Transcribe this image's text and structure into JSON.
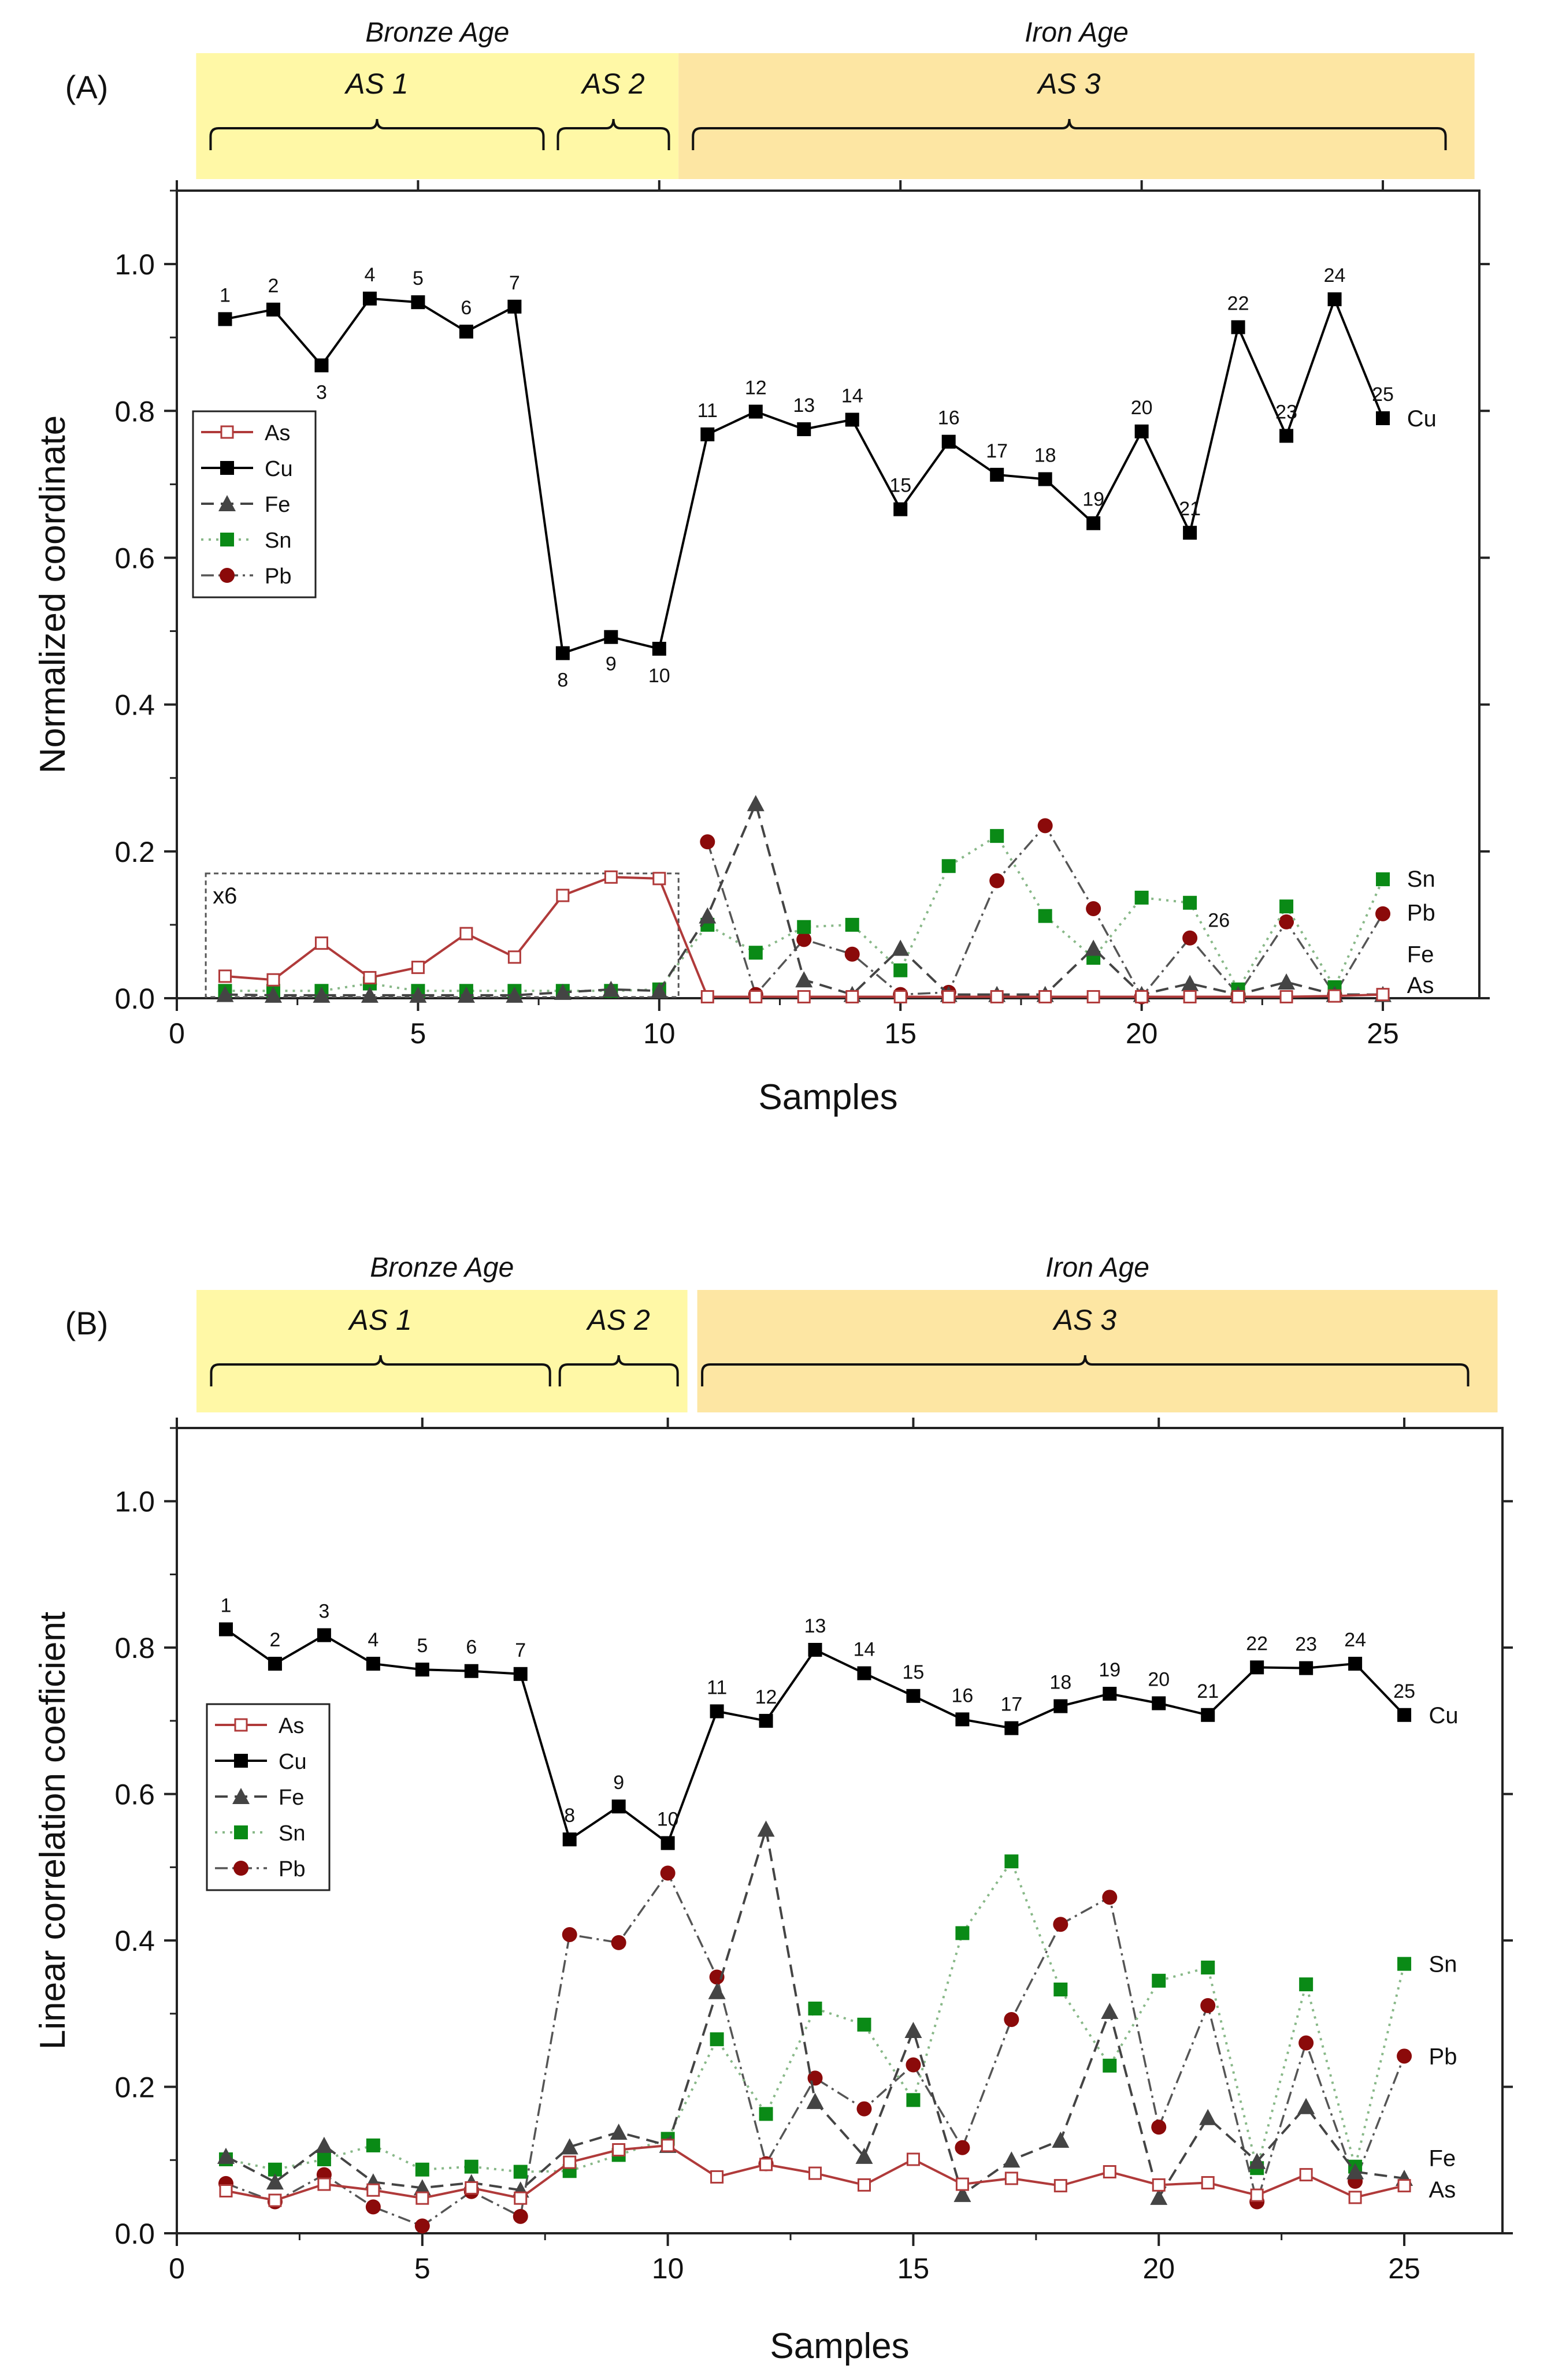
{
  "figure": {
    "colors": {
      "bronze_band": "#fff8a6",
      "iron_band": "#fde6a3",
      "As": "#b03a3a",
      "Cu": "#000000",
      "Fe": "#444444",
      "Sn": "#0a8a16",
      "Pb": "#8b0a0a"
    },
    "series_icons": {
      "As": "open-square-icon",
      "Cu": "filled-square-icon",
      "Fe": "triangle-icon",
      "Sn": "green-square-icon",
      "Pb": "circle-icon"
    }
  },
  "chart_data": [
    {
      "type": "line",
      "panel_label": "(A)",
      "xlabel": "Samples",
      "ylabel": "Normalized coordinate",
      "xlim": [
        0,
        27
      ],
      "ylim": [
        0,
        1.1
      ],
      "x_ticks": [
        0,
        5,
        10,
        15,
        20,
        25
      ],
      "y_ticks": [
        0.0,
        0.2,
        0.4,
        0.6,
        0.8,
        1.0
      ],
      "x_tick_labels": [
        "0",
        "5",
        "10",
        "15",
        "20",
        "25"
      ],
      "y_tick_labels": [
        "0.0",
        "0.2",
        "0.4",
        "0.6",
        "0.8",
        "1.0"
      ],
      "age_bands": [
        {
          "label": "Bronze Age",
          "x_range": [
            0.4,
            10.4
          ]
        },
        {
          "label": "Iron Age",
          "x_range": [
            10.4,
            26.9
          ]
        }
      ],
      "groups": [
        {
          "label": "AS 1",
          "x_range": [
            0.7,
            7.6
          ]
        },
        {
          "label": "AS 2",
          "x_range": [
            7.9,
            10.2
          ]
        },
        {
          "label": "AS 3",
          "x_range": [
            10.7,
            26.3
          ]
        }
      ],
      "legend": [
        "As",
        "Cu",
        "Fe",
        "Sn",
        "Pb"
      ],
      "legend_position": "upper-left",
      "inset_note": "x6",
      "inset_x_range": [
        0.6,
        10.4
      ],
      "inset_y_range": [
        0,
        0.17
      ],
      "series": [
        {
          "name": "Cu",
          "x": [
            1,
            2,
            3,
            4,
            5,
            6,
            7,
            8,
            9,
            10,
            11,
            12,
            13,
            14,
            15,
            16,
            17,
            18,
            19,
            20,
            21,
            22,
            23,
            24,
            25
          ],
          "values": [
            0.925,
            0.938,
            0.862,
            0.953,
            0.948,
            0.908,
            0.942,
            0.47,
            0.492,
            0.476,
            0.768,
            0.799,
            0.775,
            0.788,
            0.666,
            0.758,
            0.713,
            0.707,
            0.647,
            0.772,
            0.634,
            0.914,
            0.766,
            0.952,
            0.79
          ],
          "point_labels": [
            "1",
            "2",
            "3",
            "4",
            "5",
            "6",
            "7",
            "8",
            "9",
            "10",
            "11",
            "12",
            "13",
            "14",
            "15",
            "16",
            "17",
            "18",
            "19",
            "20",
            "21",
            "22",
            "23",
            "24",
            "25"
          ],
          "end_label": "Cu"
        },
        {
          "name": "As",
          "x": [
            1,
            2,
            3,
            4,
            5,
            6,
            7,
            8,
            9,
            10,
            11,
            12,
            13,
            14,
            15,
            16,
            17,
            18,
            19,
            20,
            21,
            22,
            23,
            24,
            25
          ],
          "values": [
            0.03,
            0.025,
            0.075,
            0.028,
            0.042,
            0.088,
            0.056,
            0.14,
            0.165,
            0.163,
            0.002,
            0.002,
            0.002,
            0.002,
            0.002,
            0.002,
            0.002,
            0.002,
            0.002,
            0.002,
            0.002,
            0.002,
            0.002,
            0.003,
            0.005
          ],
          "end_label": "As"
        },
        {
          "name": "Fe",
          "x": [
            1,
            2,
            3,
            4,
            5,
            6,
            7,
            8,
            9,
            10,
            11,
            12,
            13,
            14,
            15,
            16,
            17,
            18,
            19,
            20,
            21,
            22,
            23,
            24,
            25
          ],
          "values": [
            0.005,
            0.004,
            0.004,
            0.004,
            0.004,
            0.004,
            0.004,
            0.008,
            0.012,
            0.01,
            0.112,
            0.265,
            0.025,
            0.005,
            0.068,
            0.005,
            0.005,
            0.005,
            0.068,
            0.005,
            0.02,
            0.005,
            0.022,
            0.005,
            0.005
          ],
          "end_label": "Fe"
        },
        {
          "name": "Sn",
          "x": [
            1,
            2,
            3,
            4,
            5,
            6,
            7,
            8,
            9,
            10,
            11,
            12,
            13,
            14,
            15,
            16,
            17,
            18,
            19,
            20,
            21,
            22,
            23,
            24,
            25
          ],
          "values": [
            0.01,
            0.01,
            0.01,
            0.02,
            0.01,
            0.01,
            0.01,
            0.01,
            0.01,
            0.012,
            0.1,
            0.062,
            0.097,
            0.1,
            0.038,
            0.18,
            0.221,
            0.112,
            0.055,
            0.137,
            0.13,
            0.012,
            0.125,
            0.015,
            0.162
          ],
          "end_label": "Sn"
        },
        {
          "name": "Pb",
          "x": [
            11,
            12,
            13,
            14,
            15,
            16,
            17,
            18,
            19,
            20,
            21,
            22,
            23,
            24,
            25
          ],
          "values": [
            0.213,
            0.005,
            0.08,
            0.06,
            0.005,
            0.008,
            0.16,
            0.235,
            0.122,
            0.002,
            0.082,
            0.005,
            0.104,
            0.005,
            0.115
          ],
          "end_label": "Pb",
          "extra_label": {
            "text": "26",
            "x": 21.6,
            "y": 0.097
          }
        }
      ]
    },
    {
      "type": "line",
      "panel_label": "(B)",
      "xlabel": "Samples",
      "ylabel": "Linear correlation coeficient",
      "xlim": [
        0,
        27
      ],
      "ylim": [
        0,
        1.1
      ],
      "x_ticks": [
        0,
        5,
        10,
        15,
        20,
        25
      ],
      "y_ticks": [
        0.0,
        0.2,
        0.4,
        0.6,
        0.8,
        1.0
      ],
      "x_tick_labels": [
        "0",
        "5",
        "10",
        "15",
        "20",
        "25"
      ],
      "y_tick_labels": [
        "0.0",
        "0.2",
        "0.4",
        "0.6",
        "0.8",
        "1.0"
      ],
      "age_bands": [
        {
          "label": "Bronze Age",
          "x_range": [
            0.4,
            10.4
          ]
        },
        {
          "label": "Iron Age",
          "x_range": [
            10.6,
            26.9
          ]
        }
      ],
      "groups": [
        {
          "label": "AS 1",
          "x_range": [
            0.7,
            7.6
          ]
        },
        {
          "label": "AS 2",
          "x_range": [
            7.8,
            10.2
          ]
        },
        {
          "label": "AS 3",
          "x_range": [
            10.7,
            26.3
          ]
        }
      ],
      "legend": [
        "As",
        "Cu",
        "Fe",
        "Sn",
        "Pb"
      ],
      "legend_position": "middle-left",
      "series": [
        {
          "name": "Cu",
          "x": [
            1,
            2,
            3,
            4,
            5,
            6,
            7,
            8,
            9,
            10,
            11,
            12,
            13,
            14,
            15,
            16,
            17,
            18,
            19,
            20,
            21,
            22,
            23,
            24,
            25
          ],
          "values": [
            0.825,
            0.778,
            0.817,
            0.778,
            0.77,
            0.768,
            0.764,
            0.538,
            0.583,
            0.533,
            0.713,
            0.7,
            0.797,
            0.765,
            0.734,
            0.702,
            0.69,
            0.72,
            0.737,
            0.724,
            0.708,
            0.773,
            0.772,
            0.778,
            0.708
          ],
          "point_labels": [
            "1",
            "2",
            "3",
            "4",
            "5",
            "6",
            "7",
            "8",
            "9",
            "10",
            "11",
            "12",
            "13",
            "14",
            "15",
            "16",
            "17",
            "18",
            "19",
            "20",
            "21",
            "22",
            "23",
            "24",
            "25"
          ],
          "end_label": "Cu"
        },
        {
          "name": "As",
          "x": [
            1,
            2,
            3,
            4,
            5,
            6,
            7,
            8,
            9,
            10,
            11,
            12,
            13,
            14,
            15,
            16,
            17,
            18,
            19,
            20,
            21,
            22,
            23,
            24,
            25
          ],
          "values": [
            0.058,
            0.045,
            0.067,
            0.059,
            0.048,
            0.062,
            0.048,
            0.097,
            0.114,
            0.12,
            0.077,
            0.094,
            0.082,
            0.066,
            0.101,
            0.067,
            0.075,
            0.065,
            0.084,
            0.066,
            0.069,
            0.052,
            0.08,
            0.049,
            0.065
          ],
          "end_label": "As"
        },
        {
          "name": "Fe",
          "x": [
            1,
            2,
            3,
            4,
            5,
            6,
            7,
            8,
            9,
            10,
            11,
            12,
            13,
            14,
            15,
            16,
            17,
            18,
            19,
            20,
            21,
            22,
            23,
            24,
            25
          ],
          "values": [
            0.105,
            0.07,
            0.12,
            0.07,
            0.062,
            0.069,
            0.059,
            0.118,
            0.138,
            0.12,
            0.33,
            0.552,
            0.18,
            0.105,
            0.277,
            0.053,
            0.1,
            0.127,
            0.303,
            0.049,
            0.158,
            0.098,
            0.173,
            0.084,
            0.075
          ],
          "end_label": "Fe"
        },
        {
          "name": "Sn",
          "x": [
            1,
            2,
            3,
            4,
            5,
            6,
            7,
            8,
            9,
            10,
            11,
            12,
            13,
            14,
            15,
            16,
            17,
            18,
            19,
            20,
            21,
            22,
            23,
            24,
            25
          ],
          "values": [
            0.101,
            0.087,
            0.101,
            0.12,
            0.087,
            0.091,
            0.084,
            0.085,
            0.107,
            0.129,
            0.265,
            0.163,
            0.307,
            0.285,
            0.182,
            0.41,
            0.508,
            0.333,
            0.229,
            0.345,
            0.363,
            0.089,
            0.34,
            0.091,
            0.368
          ],
          "end_label": "Sn"
        },
        {
          "name": "Pb",
          "x": [
            1,
            2,
            3,
            4,
            5,
            6,
            7,
            8,
            9,
            10,
            11,
            12,
            13,
            14,
            15,
            16,
            17,
            18,
            19,
            20,
            21,
            22,
            23,
            24,
            25
          ],
          "values": [
            0.068,
            0.043,
            0.08,
            0.036,
            0.01,
            0.057,
            0.023,
            0.408,
            0.397,
            0.492,
            0.35,
            0.095,
            0.212,
            0.17,
            0.23,
            0.117,
            0.292,
            0.422,
            0.459,
            0.145,
            0.311,
            0.043,
            0.26,
            0.071,
            0.242
          ],
          "end_label": "Pb"
        }
      ]
    }
  ]
}
